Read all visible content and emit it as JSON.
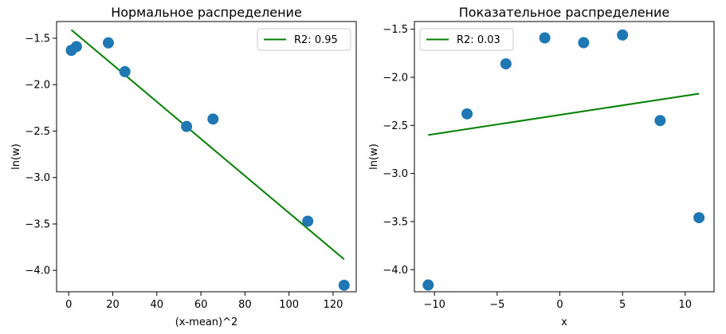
{
  "chart_data": [
    {
      "type": "scatter",
      "title": "Нормальное распределение",
      "xlabel": "(x-mean)^2",
      "ylabel": "ln(w)",
      "xlim": [
        -5.5,
        130.5
      ],
      "ylim": [
        -4.23,
        -1.32
      ],
      "xticks": [
        0,
        20,
        40,
        60,
        80,
        100,
        120
      ],
      "yticks": [
        -4.0,
        -3.5,
        -3.0,
        -2.5,
        -2.0,
        -1.5
      ],
      "xtick_labels": [
        "0",
        "20",
        "40",
        "60",
        "80",
        "100",
        "120"
      ],
      "ytick_labels": [
        "−4.0",
        "−3.5",
        "−3.0",
        "−2.5",
        "−2.0",
        "−1.5"
      ],
      "points": {
        "x": [
          1.2,
          3.5,
          18.0,
          25.5,
          53.5,
          65.5,
          108.5,
          125.0
        ],
        "y": [
          -1.63,
          -1.59,
          -1.55,
          -1.86,
          -2.45,
          -2.37,
          -3.47,
          -4.16
        ]
      },
      "fit": {
        "name": "R2: 0.95",
        "x": [
          1.2,
          125.0
        ],
        "y": [
          -1.41,
          -3.88
        ]
      },
      "legend_position": "top-right",
      "grid": false,
      "point_color": "#1f77b4",
      "line_color": "#008000"
    },
    {
      "type": "scatter",
      "title": "Показательное распределение",
      "xlabel": "x",
      "ylabel": "ln(w)",
      "xlim": [
        -11.6,
        12.3
      ],
      "ylim": [
        -4.23,
        -1.42
      ],
      "xticks": [
        -10,
        -5,
        0,
        5,
        10
      ],
      "yticks": [
        -4.0,
        -3.5,
        -3.0,
        -2.5,
        -2.0,
        -1.5
      ],
      "xtick_labels": [
        "−10",
        "−5",
        "0",
        "5",
        "10"
      ],
      "ytick_labels": [
        "−4.0",
        "−3.5",
        "−3.0",
        "−2.5",
        "−2.0",
        "−1.5"
      ],
      "points": {
        "x": [
          -10.5,
          -7.4,
          -4.3,
          -1.2,
          1.9,
          5.0,
          8.0,
          11.1
        ],
        "y": [
          -4.16,
          -2.38,
          -1.86,
          -1.59,
          -1.64,
          -1.56,
          -2.45,
          -3.46
        ]
      },
      "fit": {
        "name": "R2: 0.03",
        "x": [
          -10.5,
          11.1
        ],
        "y": [
          -2.6,
          -2.17
        ]
      },
      "legend_position": "top-left",
      "grid": false,
      "point_color": "#1f77b4",
      "line_color": "#008000"
    }
  ]
}
